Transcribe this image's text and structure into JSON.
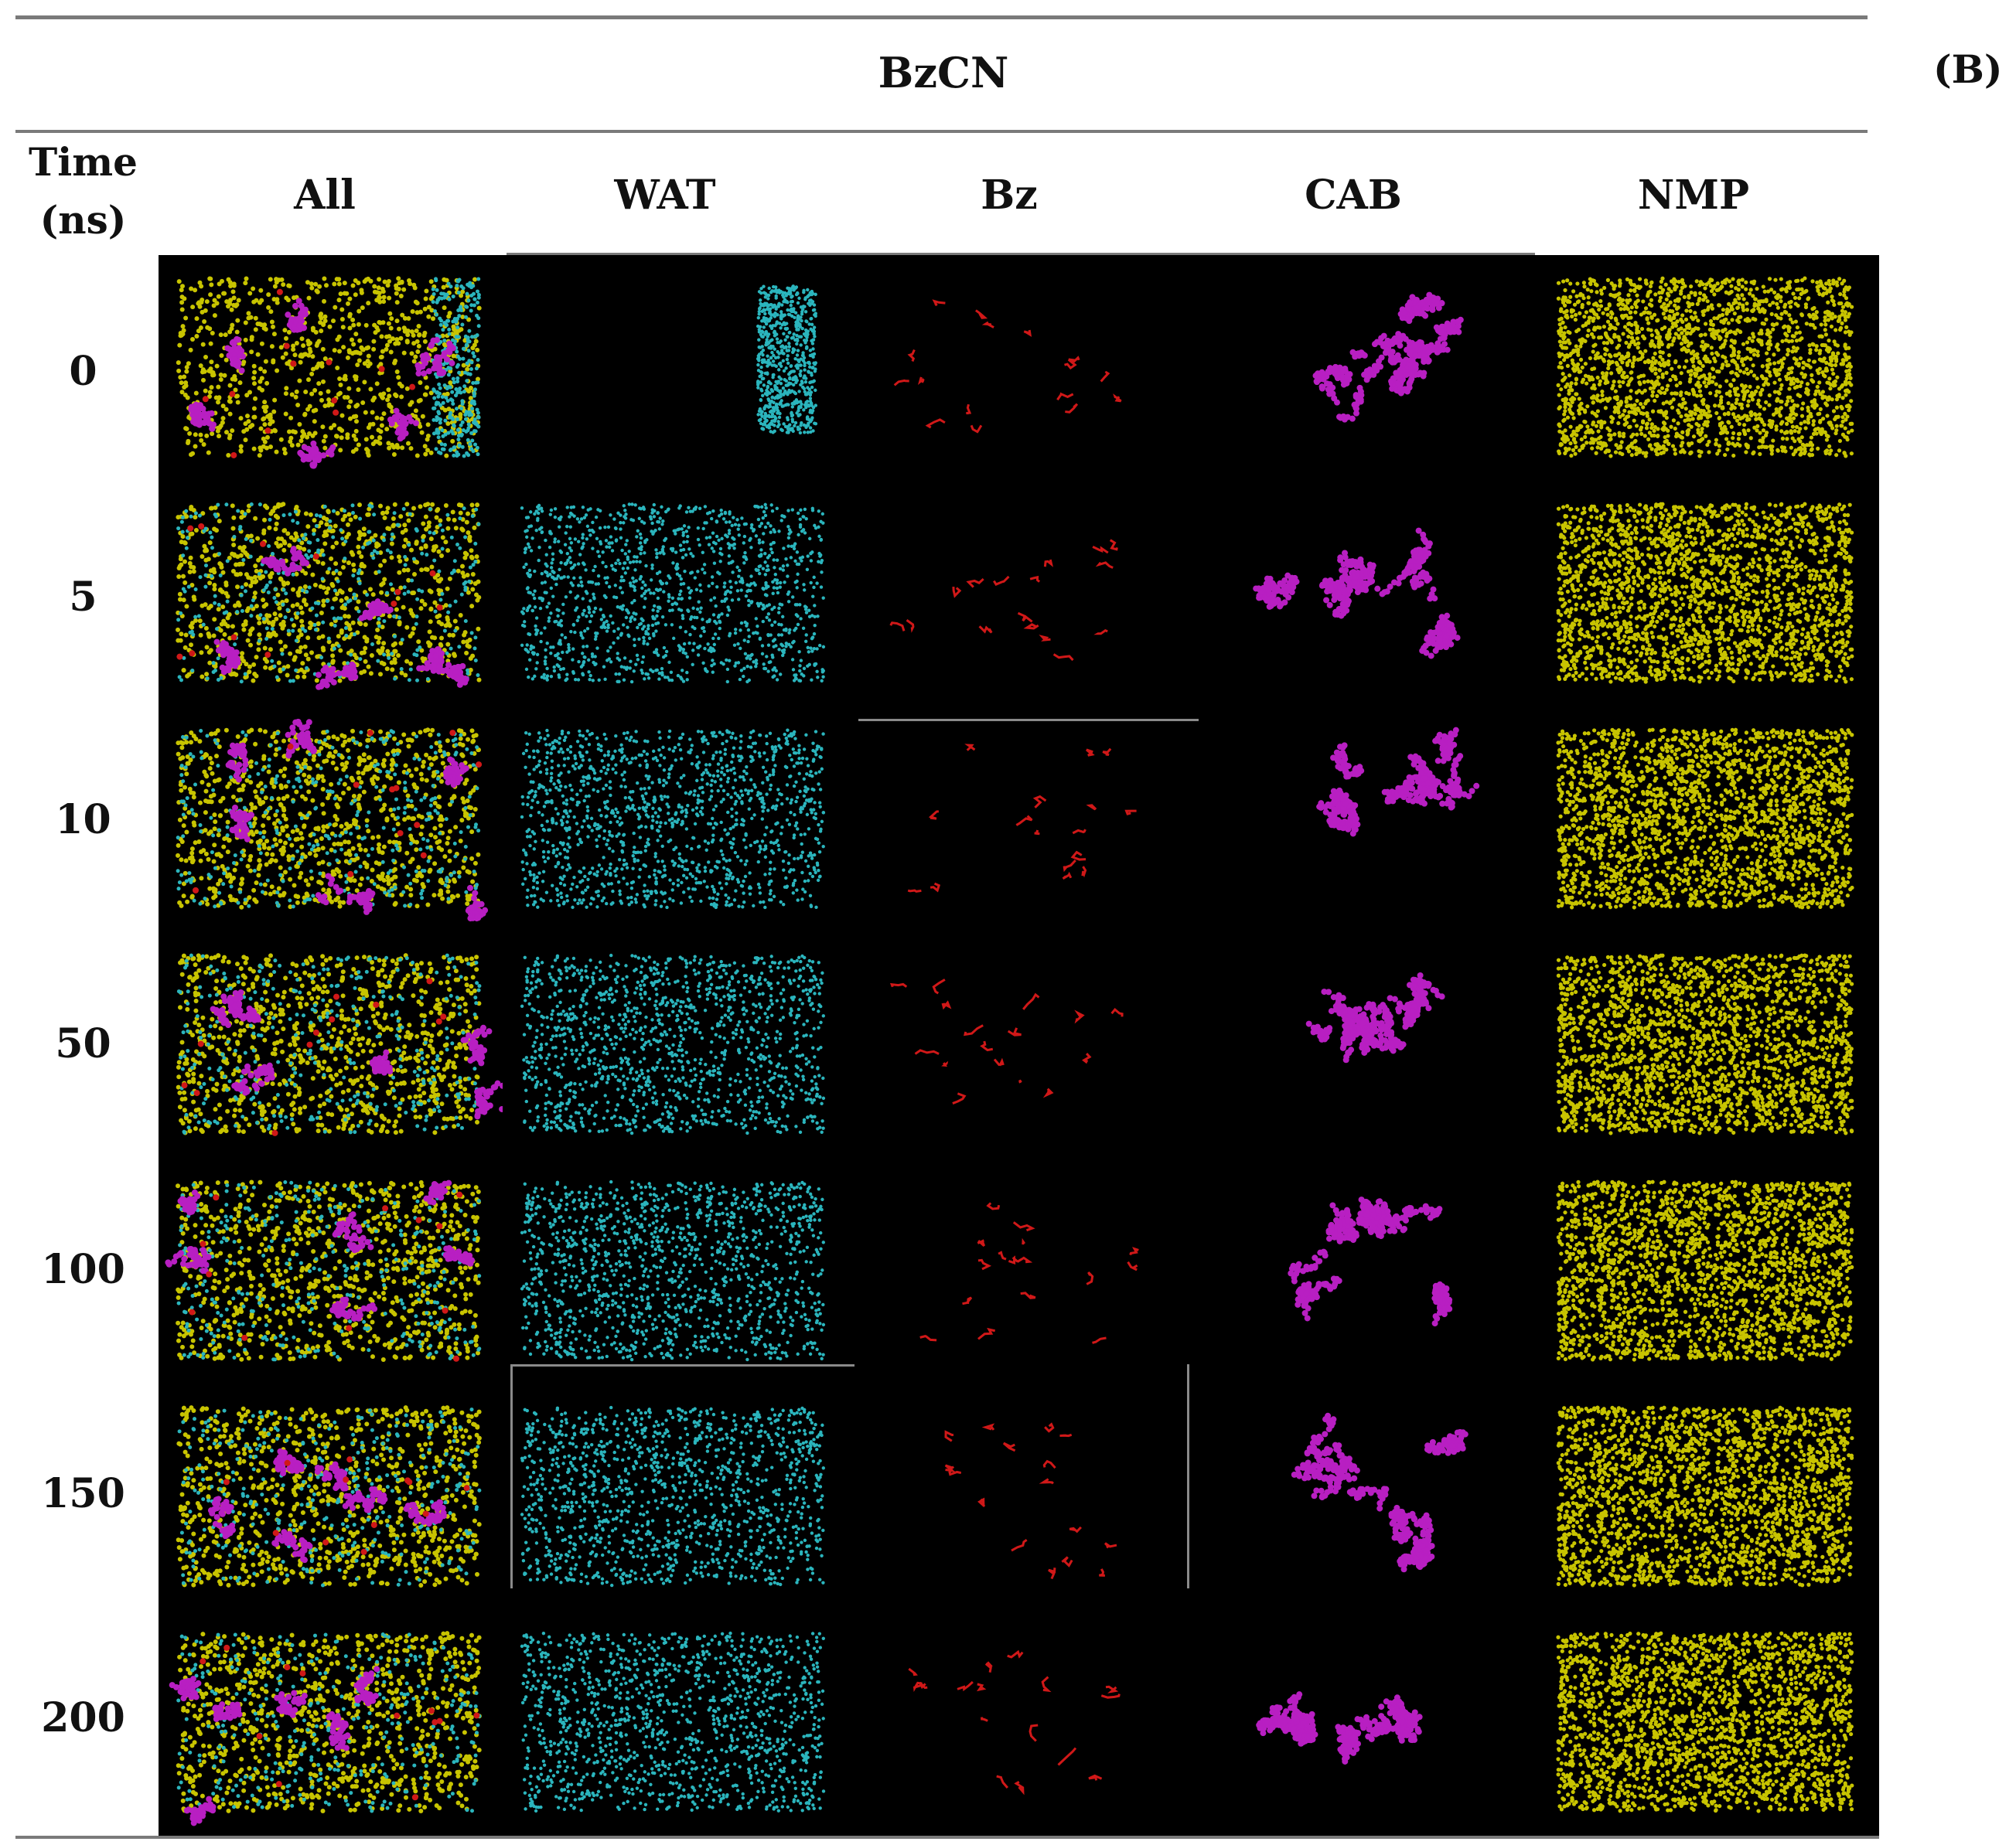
{
  "figure": {
    "panel_label": "(B)",
    "title": "BzCN",
    "time_header_line1": "Time",
    "time_header_line2": "(ns)",
    "columns": [
      "All",
      "WAT",
      "Bz",
      "CAB",
      "NMP"
    ],
    "times": [
      "0",
      "5",
      "10",
      "50",
      "100",
      "150",
      "200"
    ],
    "colors": {
      "nmp": "#c8c400",
      "water": "#2bb5bd",
      "benzene": "#d01818",
      "cab": "#b81fc2",
      "background": "#000000"
    }
  }
}
